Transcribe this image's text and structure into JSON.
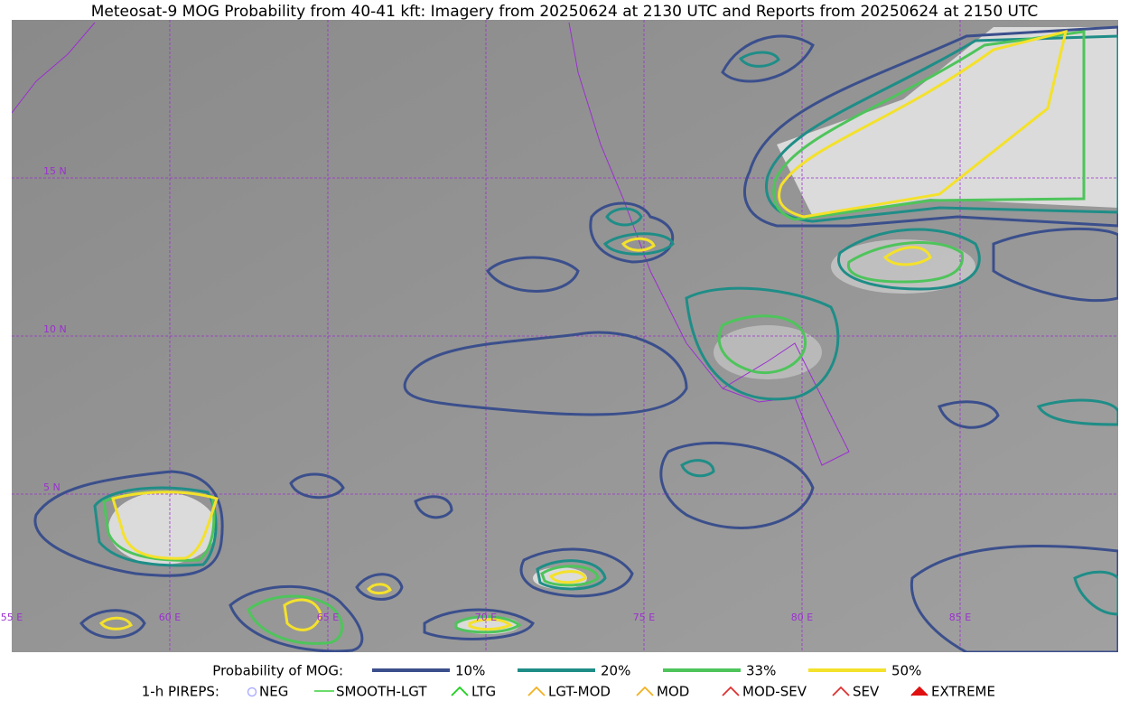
{
  "header": {
    "title": "Meteosat-9 MOG Probability from 40-41 kft: Imagery from 20250624 at 2130 UTC and Reports from 20250624 at 2150 UTC"
  },
  "map": {
    "lat_labels": [
      "15 N",
      "10 N",
      "5 N"
    ],
    "lon_labels": [
      "55 E",
      "60 E",
      "65 E",
      "70 E",
      "75 E",
      "80 E",
      "85 E"
    ]
  },
  "legend": {
    "mog": {
      "label": "Probability of MOG:",
      "items": [
        {
          "label": "10%",
          "color": "#3b4f8c"
        },
        {
          "label": "20%",
          "color": "#1f8d87"
        },
        {
          "label": "33%",
          "color": "#4ec45b"
        },
        {
          "label": "50%",
          "color": "#f4e12b"
        }
      ]
    },
    "pireps": {
      "label": "1-h PIREPS:",
      "items": [
        "NEG",
        "SMOOTH-LGT",
        "LTG",
        "LGT-MOD",
        "MOD",
        "MOD-SEV",
        "SEV",
        "EXTREME"
      ]
    }
  }
}
